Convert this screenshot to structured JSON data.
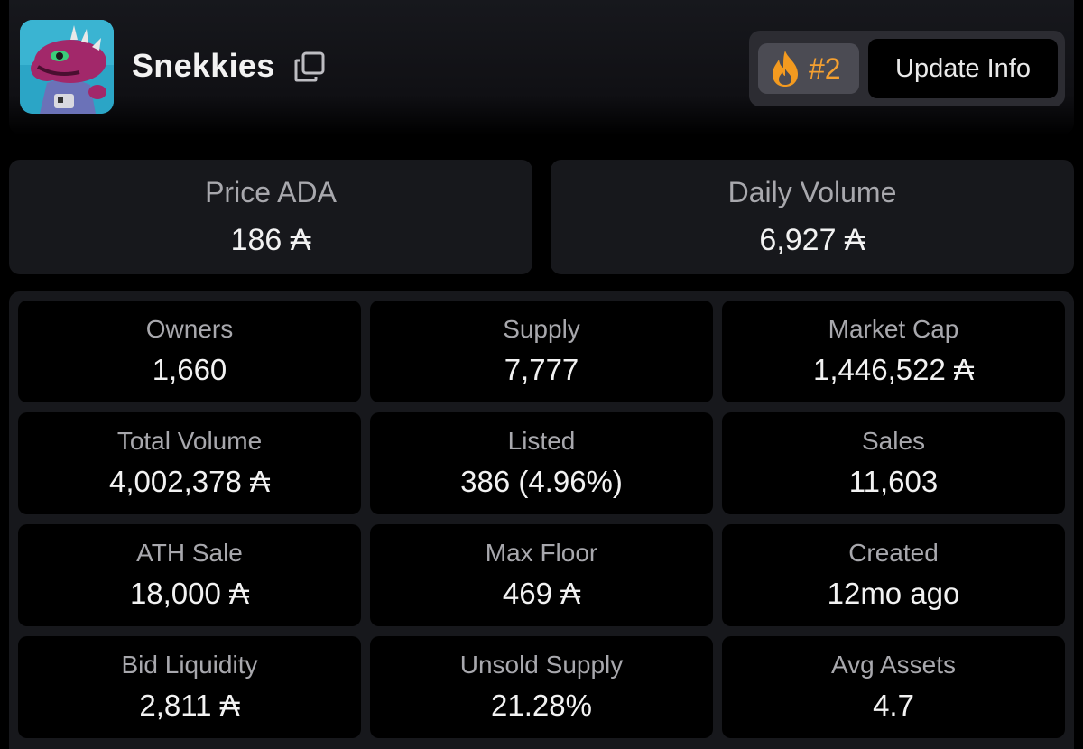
{
  "header": {
    "collection_name": "Snekkies",
    "rank": "#2",
    "update_label": "Update Info",
    "accent_color": "#f5a030"
  },
  "top_stats": [
    {
      "label": "Price ADA",
      "value": "186 ₳"
    },
    {
      "label": "Daily Volume",
      "value": "6,927 ₳"
    }
  ],
  "stats": [
    {
      "label": "Owners",
      "value": "1,660"
    },
    {
      "label": "Supply",
      "value": "7,777"
    },
    {
      "label": "Market Cap",
      "value": "1,446,522 ₳"
    },
    {
      "label": "Total Volume",
      "value": "4,002,378 ₳"
    },
    {
      "label": "Listed",
      "value": "386 (4.96%)"
    },
    {
      "label": "Sales",
      "value": "11,603"
    },
    {
      "label": "ATH Sale",
      "value": "18,000 ₳"
    },
    {
      "label": "Max Floor",
      "value": "469 ₳"
    },
    {
      "label": "Created",
      "value": "12mo ago"
    },
    {
      "label": "Bid Liquidity",
      "value": "2,811 ₳"
    },
    {
      "label": "Unsold Supply",
      "value": "21.28%"
    },
    {
      "label": "Avg Assets",
      "value": "4.7"
    }
  ],
  "icons": {
    "copy": "copy-icon",
    "rank": "fire-icon",
    "avatar": "snake-avatar"
  }
}
